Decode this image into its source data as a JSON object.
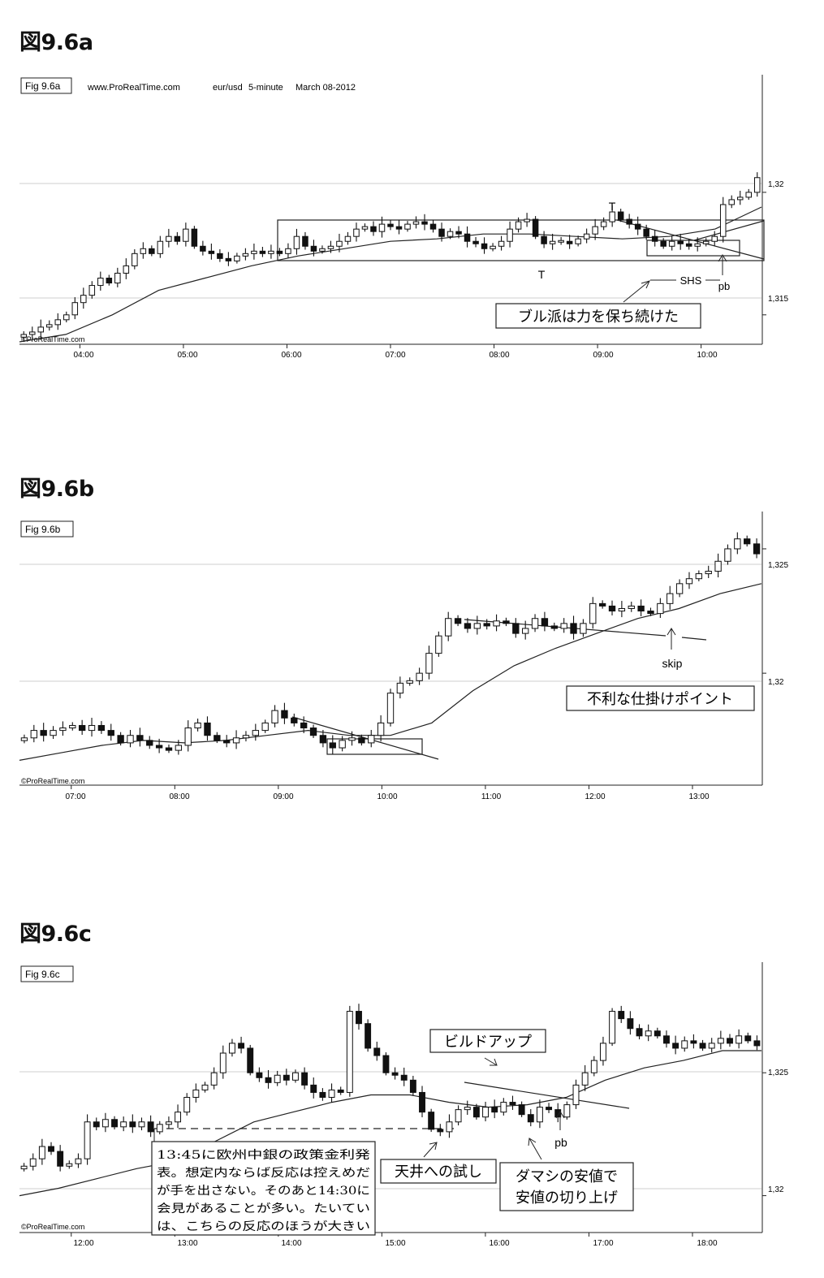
{
  "figures": [
    {
      "heading": "図9.6a",
      "figlabel": "Fig 9.6a",
      "source": "www.ProRealTime.com",
      "symbol": "eur/usd",
      "interval": "5-minute",
      "date": "March 08-2012",
      "watermark": "©ProRealTime.com",
      "price_ticks": [
        "1,32",
        "1,315"
      ],
      "time_ticks": [
        "04:00",
        "05:00",
        "06:00",
        "07:00",
        "08:00",
        "09:00",
        "10:00"
      ],
      "annotations": {
        "t1": "T",
        "t2": "T",
        "shs": "SHS",
        "pb": "pb",
        "box_text": "ブル派は力を保ち続けた"
      }
    },
    {
      "heading": "図9.6b",
      "figlabel": "Fig 9.6b",
      "watermark": "©ProRealTime.com",
      "price_ticks": [
        "1,325",
        "1,32"
      ],
      "time_ticks": [
        "07:00",
        "08:00",
        "09:00",
        "10:00",
        "11:00",
        "12:00",
        "13:00"
      ],
      "annotations": {
        "skip": "skip",
        "box_text": "不利な仕掛けポイント"
      }
    },
    {
      "heading": "図9.6c",
      "figlabel": "Fig 9.6c",
      "watermark": "©ProRealTime.com",
      "price_ticks": [
        "1,325",
        "1,32"
      ],
      "time_ticks": [
        "12:00",
        "13:00",
        "14:00",
        "15:00",
        "16:00",
        "17:00",
        "18:00"
      ],
      "annotations": {
        "buildup": "ビルドアップ",
        "pb": "pb",
        "top_test": "天井への試し",
        "fake_low_1": "ダマシの安値で",
        "fake_low_2": "安値の切り上げ",
        "note_lines": [
          "13:45に欧州中銀の政策金利発",
          "表。想定内ならば反応は控えめだ",
          "が手を出さない。そのあと14:30に",
          "会見があることが多い。たいてい",
          "は、こちらの反応のほうが大きい"
        ]
      }
    }
  ],
  "chart_data": [
    {
      "type": "candlestick",
      "title": "Fig 9.6a",
      "instrument": "eur/usd",
      "timeframe": "5-minute",
      "date": "March 08-2012",
      "ylim": [
        1.3138,
        1.3248
      ],
      "yticks": [
        1.315,
        1.32
      ],
      "xticks": [
        "04:00",
        "05:00",
        "06:00",
        "07:00",
        "08:00",
        "09:00",
        "10:00"
      ],
      "x_range": [
        "03:25",
        "10:35"
      ],
      "grid": true,
      "bar_closes": [
        1.3142,
        1.3143,
        1.3145,
        1.3146,
        1.3148,
        1.315,
        1.3155,
        1.3158,
        1.3162,
        1.3165,
        1.3163,
        1.3167,
        1.317,
        1.3175,
        1.3177,
        1.3175,
        1.318,
        1.3182,
        1.318,
        1.3185,
        1.3178,
        1.3176,
        1.3175,
        1.3173,
        1.3172,
        1.3174,
        1.3175,
        1.3176,
        1.3175,
        1.3176,
        1.3175,
        1.3177,
        1.3182,
        1.3178,
        1.3176,
        1.3177,
        1.3178,
        1.318,
        1.3182,
        1.3185,
        1.3186,
        1.3184,
        1.3187,
        1.3186,
        1.3185,
        1.3187,
        1.3188,
        1.3187,
        1.3185,
        1.3182,
        1.3184,
        1.3183,
        1.318,
        1.3179,
        1.3177,
        1.3178,
        1.318,
        1.3185,
        1.3188,
        1.3189,
        1.3182,
        1.3179,
        1.318,
        1.318,
        1.3179,
        1.3181,
        1.3183,
        1.3186,
        1.3188,
        1.3192,
        1.3189,
        1.3187,
        1.3185,
        1.3182,
        1.318,
        1.3178,
        1.318,
        1.3179,
        1.3178,
        1.3179,
        1.318,
        1.3182,
        1.3195,
        1.3197,
        1.3198,
        1.32,
        1.3206
      ],
      "moving_average_approx": [
        1.3139,
        1.3142,
        1.315,
        1.316,
        1.3165,
        1.317,
        1.3174,
        1.3177,
        1.318,
        1.3181,
        1.3183,
        1.3183,
        1.3182,
        1.3181,
        1.3182,
        1.3185,
        1.3194
      ],
      "annotations": [
        {
          "text": "T",
          "at": "09:05"
        },
        {
          "text": "T",
          "at": "08:25"
        },
        {
          "text": "SHS",
          "at": "09:45"
        },
        {
          "text": "pb",
          "at": "10:05"
        },
        {
          "text": "ブル派は力を保ち続けた"
        }
      ]
    },
    {
      "type": "candlestick",
      "title": "Fig 9.6b",
      "ylim": [
        1.3155,
        1.3265
      ],
      "yticks": [
        1.32,
        1.325
      ],
      "xticks": [
        "07:00",
        "08:00",
        "09:00",
        "10:00",
        "11:00",
        "12:00",
        "13:00"
      ],
      "x_range": [
        "06:30",
        "13:40"
      ],
      "grid": true,
      "bar_closes": [
        1.3174,
        1.3177,
        1.3175,
        1.3177,
        1.3178,
        1.3179,
        1.3177,
        1.3179,
        1.3177,
        1.3175,
        1.3172,
        1.3175,
        1.3173,
        1.3171,
        1.317,
        1.3169,
        1.3171,
        1.3178,
        1.318,
        1.3175,
        1.3173,
        1.3172,
        1.3174,
        1.3175,
        1.3177,
        1.318,
        1.3185,
        1.3182,
        1.318,
        1.3178,
        1.3175,
        1.3172,
        1.317,
        1.3173,
        1.3174,
        1.3172,
        1.3175,
        1.318,
        1.3192,
        1.3196,
        1.3197,
        1.32,
        1.3208,
        1.3215,
        1.3222,
        1.322,
        1.3218,
        1.322,
        1.3219,
        1.3221,
        1.322,
        1.3216,
        1.3218,
        1.3222,
        1.3219,
        1.3218,
        1.322,
        1.3216,
        1.322,
        1.3228,
        1.3227,
        1.3225,
        1.3226,
        1.3227,
        1.3225,
        1.3224,
        1.3228,
        1.3232,
        1.3236,
        1.3238,
        1.324,
        1.3241,
        1.3245,
        1.325,
        1.3254,
        1.3252,
        1.3248
      ],
      "moving_average_approx": [
        1.3165,
        1.3168,
        1.3171,
        1.3173,
        1.3172,
        1.3173,
        1.3175,
        1.3177,
        1.3175,
        1.3175,
        1.318,
        1.3193,
        1.3203,
        1.321,
        1.3216,
        1.3222,
        1.3226,
        1.3232,
        1.3236
      ],
      "annotations": [
        {
          "text": "skip",
          "at": "12:45"
        },
        {
          "text": "不利な仕掛けポイント"
        }
      ]
    },
    {
      "type": "candlestick",
      "title": "Fig 9.6c",
      "ylim": [
        1.3185,
        1.3295
      ],
      "yticks": [
        1.32,
        1.325
      ],
      "xticks": [
        "12:00",
        "13:00",
        "14:00",
        "15:00",
        "16:00",
        "17:00",
        "18:00"
      ],
      "x_range": [
        "11:30",
        "18:40"
      ],
      "grid": true,
      "bar_closes": [
        1.3212,
        1.3215,
        1.322,
        1.3218,
        1.3212,
        1.3213,
        1.3215,
        1.323,
        1.3228,
        1.3231,
        1.3228,
        1.323,
        1.3228,
        1.323,
        1.3226,
        1.3229,
        1.323,
        1.3234,
        1.324,
        1.3243,
        1.3245,
        1.325,
        1.3258,
        1.3262,
        1.326,
        1.325,
        1.3248,
        1.3246,
        1.3249,
        1.3247,
        1.325,
        1.3245,
        1.3242,
        1.324,
        1.3243,
        1.3242,
        1.3275,
        1.327,
        1.326,
        1.3257,
        1.325,
        1.3249,
        1.3247,
        1.3242,
        1.3234,
        1.3227,
        1.3226,
        1.323,
        1.3235,
        1.3236,
        1.3232,
        1.3236,
        1.3234,
        1.3238,
        1.3237,
        1.3233,
        1.323,
        1.3236,
        1.3235,
        1.3232,
        1.3237,
        1.3245,
        1.325,
        1.3255,
        1.3262,
        1.3275,
        1.3272,
        1.3268,
        1.3265,
        1.3267,
        1.3265,
        1.3262,
        1.326,
        1.3263,
        1.3262,
        1.326,
        1.3262,
        1.3264,
        1.3262,
        1.3265,
        1.3263,
        1.3261
      ],
      "moving_average_approx": [
        1.32,
        1.3203,
        1.3207,
        1.3211,
        1.3214,
        1.3222,
        1.323,
        1.3234,
        1.3238,
        1.3241,
        1.3241,
        1.3238,
        1.3236,
        1.3237,
        1.324,
        1.3247,
        1.3252,
        1.3255,
        1.3259,
        1.3259
      ],
      "annotations": [
        {
          "text": "ビルドアップ"
        },
        {
          "text": "pb",
          "at": "16:30"
        },
        {
          "text": "天井への試し"
        },
        {
          "text": "ダマシの安値で 安値の切り上げ"
        },
        {
          "text": "13:45に欧州中銀の政策金利発表。想定内ならば反応は控えめだが手を出さない。そのあと14:30に会見があることが多い。たいていは、こちらの反応のほうが大きい"
        }
      ]
    }
  ]
}
